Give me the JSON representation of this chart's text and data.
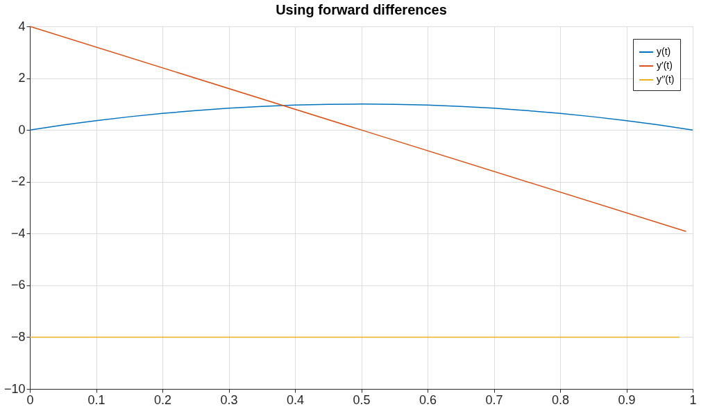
{
  "chart_data": {
    "type": "line",
    "title": "Using forward differences",
    "xlim": [
      0,
      1
    ],
    "xticks": [
      0,
      0.1,
      0.2,
      0.3,
      0.4,
      0.5,
      0.6,
      0.7,
      0.8,
      0.9,
      1
    ],
    "ylim": [
      -10,
      4
    ],
    "yticks": [
      -10,
      -8,
      -6,
      -4,
      -2,
      0,
      2,
      4
    ],
    "grid": true,
    "legend": "top right",
    "line_style": "solid",
    "series": [
      {
        "name": "y(t)",
        "color": "#0072bd",
        "x": [
          0,
          0.05,
          0.1,
          0.15,
          0.2,
          0.25,
          0.3,
          0.35,
          0.4,
          0.45,
          0.5,
          0.55,
          0.6,
          0.65,
          0.7,
          0.75,
          0.8,
          0.85,
          0.9,
          0.95,
          1
        ],
        "values": [
          0,
          0.19,
          0.36,
          0.51,
          0.64,
          0.75,
          0.84,
          0.91,
          0.96,
          0.99,
          1,
          0.99,
          0.96,
          0.91,
          0.84,
          0.75,
          0.64,
          0.51,
          0.36,
          0.19,
          0
        ]
      },
      {
        "name": "y′(t)",
        "color": "#d95319",
        "x": [
          0,
          0.5,
          0.99
        ],
        "values": [
          4,
          0,
          -3.92
        ]
      },
      {
        "name": "y′′(t)",
        "color": "#edb120",
        "x": [
          0,
          0.98
        ],
        "values": [
          -8,
          -8
        ]
      }
    ]
  }
}
